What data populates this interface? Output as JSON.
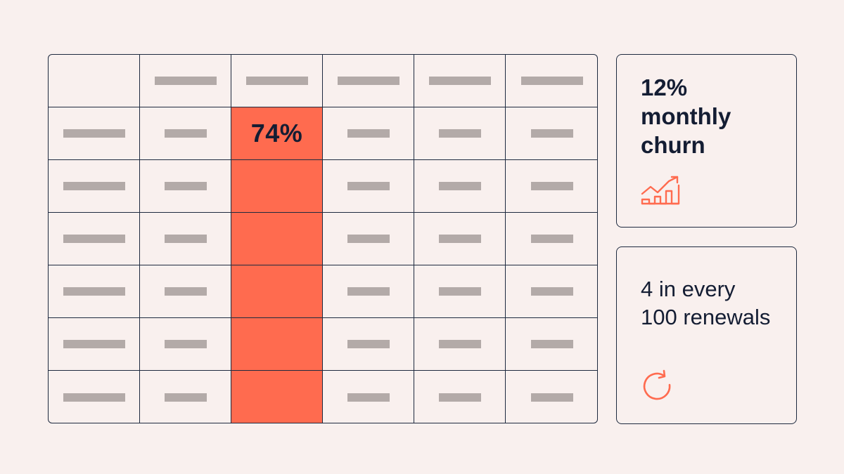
{
  "table": {
    "columns": 6,
    "rows": 7,
    "highlight_column": 2,
    "highlight_label": "74%",
    "highlight_color": "#ff6b4f",
    "placeholder_color": "#b3aaa8",
    "border_color": "#1e2a3f"
  },
  "cards": [
    {
      "lines": [
        "12%",
        "monthly",
        "churn"
      ],
      "icon": "trend-chart-icon"
    },
    {
      "lines": [
        "4 in every",
        "100 renewals"
      ],
      "icon": "refresh-icon"
    }
  ],
  "colors": {
    "background": "#f9f0ee",
    "accent": "#ff6b4f",
    "text": "#141d33"
  }
}
